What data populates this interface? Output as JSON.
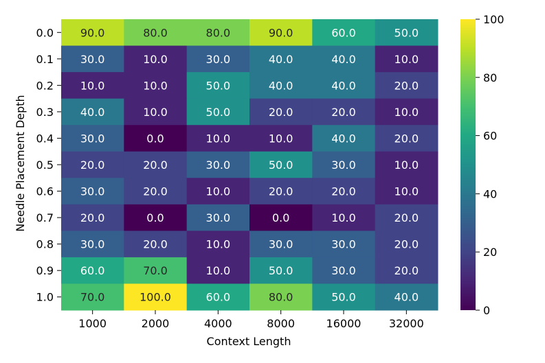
{
  "chart_data": {
    "type": "heatmap",
    "title": "",
    "xlabel": "Context Length",
    "ylabel": "Needle Placement Depth",
    "x_categories": [
      "1000",
      "2000",
      "4000",
      "8000",
      "16000",
      "32000"
    ],
    "y_categories": [
      "0.0",
      "0.1",
      "0.2",
      "0.3",
      "0.4",
      "0.5",
      "0.6",
      "0.7",
      "0.8",
      "0.9",
      "1.0"
    ],
    "values": [
      [
        90.0,
        80.0,
        80.0,
        90.0,
        60.0,
        50.0
      ],
      [
        30.0,
        10.0,
        30.0,
        40.0,
        40.0,
        10.0
      ],
      [
        10.0,
        10.0,
        50.0,
        40.0,
        40.0,
        20.0
      ],
      [
        40.0,
        10.0,
        50.0,
        20.0,
        20.0,
        10.0
      ],
      [
        30.0,
        0.0,
        10.0,
        10.0,
        40.0,
        20.0
      ],
      [
        20.0,
        20.0,
        30.0,
        50.0,
        30.0,
        10.0
      ],
      [
        30.0,
        20.0,
        10.0,
        20.0,
        20.0,
        10.0
      ],
      [
        20.0,
        0.0,
        30.0,
        0.0,
        10.0,
        20.0
      ],
      [
        30.0,
        20.0,
        10.0,
        30.0,
        30.0,
        20.0
      ],
      [
        60.0,
        70.0,
        10.0,
        50.0,
        30.0,
        20.0
      ],
      [
        70.0,
        100.0,
        60.0,
        80.0,
        50.0,
        40.0
      ]
    ],
    "cell_labels": [
      [
        "90.0",
        "80.0",
        "80.0",
        "90.0",
        "60.0",
        "50.0"
      ],
      [
        "30.0",
        "10.0",
        "30.0",
        "40.0",
        "40.0",
        "10.0"
      ],
      [
        "10.0",
        "10.0",
        "50.0",
        "40.0",
        "40.0",
        "20.0"
      ],
      [
        "40.0",
        "10.0",
        "50.0",
        "20.0",
        "20.0",
        "10.0"
      ],
      [
        "30.0",
        "0.0",
        "10.0",
        "10.0",
        "40.0",
        "20.0"
      ],
      [
        "20.0",
        "20.0",
        "30.0",
        "50.0",
        "30.0",
        "10.0"
      ],
      [
        "30.0",
        "20.0",
        "10.0",
        "20.0",
        "20.0",
        "10.0"
      ],
      [
        "20.0",
        "0.0",
        "30.0",
        "0.0",
        "10.0",
        "20.0"
      ],
      [
        "30.0",
        "20.0",
        "10.0",
        "30.0",
        "30.0",
        "20.0"
      ],
      [
        "60.0",
        "70.0",
        "10.0",
        "50.0",
        "30.0",
        "20.0"
      ],
      [
        "70.0",
        "100.0",
        "60.0",
        "80.0",
        "50.0",
        "40.0"
      ]
    ],
    "colorbar": {
      "colormap": "viridis",
      "range": [
        0,
        100
      ],
      "ticks": [
        0,
        20,
        40,
        60,
        80,
        100
      ],
      "tick_labels": [
        "0",
        "20",
        "40",
        "60",
        "80",
        "100"
      ]
    },
    "grid": false,
    "legend": "colorbar-right"
  }
}
